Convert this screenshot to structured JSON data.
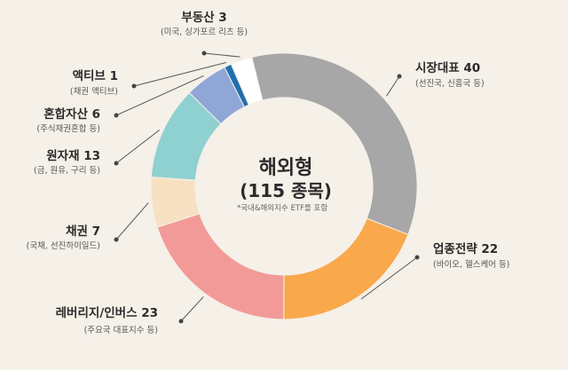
{
  "chart_data": {
    "type": "donut",
    "title": "해외형",
    "subtitle": "(115 종목)",
    "note": "*국내&해외지수 ETF를 포함",
    "total": 115,
    "slices": [
      {
        "name": "시장대표",
        "value": 40,
        "label": "시장대표 40",
        "sub": "(선진국, 신흥국 등)",
        "color": "#a7a7a7"
      },
      {
        "name": "업종전략",
        "value": 22,
        "label": "업종전략 22",
        "sub": "(바이오, 헬스케어 등)",
        "color": "#f9a84c"
      },
      {
        "name": "레버리지/인버스",
        "value": 23,
        "label": "레버리지/인버스 23",
        "sub": "(주요국 대표지수 등)",
        "color": "#f29a98"
      },
      {
        "name": "채권",
        "value": 7,
        "label": "채권 7",
        "sub": "(국채, 선진하이일드)",
        "color": "#f7e1c2"
      },
      {
        "name": "원자재",
        "value": 13,
        "label": "원자재 13",
        "sub": "(금, 원유, 구리 등)",
        "color": "#8fd0d0"
      },
      {
        "name": "혼합자산",
        "value": 6,
        "label": "혼합자산 6",
        "sub": "(주식채권혼합 등)",
        "color": "#8fa7d6"
      },
      {
        "name": "액티브",
        "value": 1,
        "label": "액티브 1",
        "sub": "(채권 액티브)",
        "color": "#1f6fb0"
      },
      {
        "name": "부동산",
        "value": 3,
        "label": "부동산 3",
        "sub": "(미국, 싱가포르 리츠 등)",
        "color": "#ffffff"
      }
    ]
  }
}
